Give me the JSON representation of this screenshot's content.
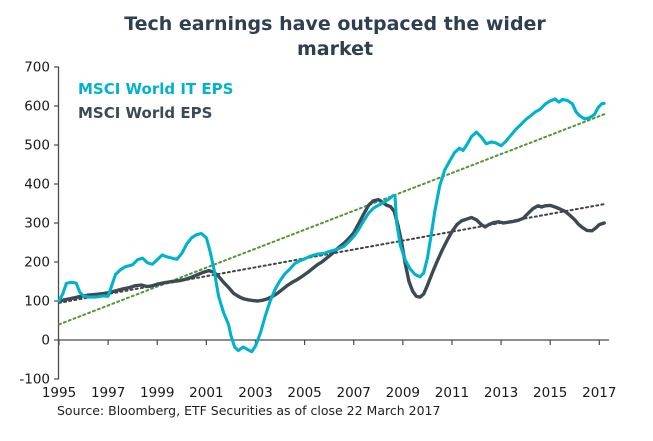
{
  "title": "Tech earnings have outpaced the wider market",
  "source": "Source: Bloomberg, ETF Securities as of close 22 March 2017",
  "colors": {
    "it_line": "#00b3cc",
    "world_line": "#3c4a55",
    "it_trend": "#4e9a2e",
    "world_trend": "#444444",
    "axis": "#4a4a4a",
    "tick_label": "#1a1a1a",
    "title_text": "#2e3f50"
  },
  "legend": [
    {
      "label": "MSCI World IT EPS",
      "color_key": "it_line"
    },
    {
      "label": "MSCI World EPS",
      "color_key": "world_line"
    }
  ],
  "chart_data": {
    "type": "line",
    "title": "Tech earnings have outpaced the wider market",
    "xlabel": "",
    "ylabel": "",
    "grid": false,
    "legend_position": "top-left-inside",
    "x_axis": {
      "range": [
        1995,
        2017.3
      ],
      "tick_years": [
        1995,
        1997,
        1999,
        2001,
        2003,
        2005,
        2007,
        2009,
        2011,
        2013,
        2015,
        2017
      ]
    },
    "y_axis": {
      "range": [
        -100,
        700
      ],
      "ticks": [
        700,
        600,
        500,
        400,
        300,
        200,
        100,
        0,
        -100
      ]
    },
    "series": [
      {
        "name": "MSCI World IT EPS trendline",
        "color_key": "it_trend",
        "style": "dotted",
        "points": [
          [
            1995.0,
            40
          ],
          [
            2017.25,
            580
          ]
        ]
      },
      {
        "name": "MSCI World EPS trendline",
        "color_key": "world_trend",
        "style": "dotted",
        "points": [
          [
            1995.0,
            95
          ],
          [
            2017.25,
            349
          ]
        ]
      },
      {
        "name": "MSCI World EPS",
        "color_key": "world_line",
        "style": "solid",
        "width": 3.4,
        "points": [
          [
            1995.0,
            100
          ],
          [
            1995.3,
            104
          ],
          [
            1995.6,
            108
          ],
          [
            1995.9,
            112
          ],
          [
            1996.2,
            115
          ],
          [
            1996.5,
            117
          ],
          [
            1996.8,
            119
          ],
          [
            1997.0,
            121
          ],
          [
            1997.3,
            126
          ],
          [
            1997.6,
            131
          ],
          [
            1997.9,
            135
          ],
          [
            1998.1,
            139
          ],
          [
            1998.35,
            141
          ],
          [
            1998.6,
            137
          ],
          [
            1998.8,
            139
          ],
          [
            1999.0,
            143
          ],
          [
            1999.3,
            147
          ],
          [
            1999.6,
            150
          ],
          [
            1999.9,
            152
          ],
          [
            2000.1,
            155
          ],
          [
            2000.4,
            161
          ],
          [
            2000.7,
            169
          ],
          [
            2000.9,
            174
          ],
          [
            2001.1,
            178
          ],
          [
            2001.3,
            174
          ],
          [
            2001.5,
            163
          ],
          [
            2001.7,
            148
          ],
          [
            2001.9,
            135
          ],
          [
            2002.1,
            120
          ],
          [
            2002.3,
            112
          ],
          [
            2002.5,
            106
          ],
          [
            2002.7,
            103
          ],
          [
            2002.9,
            101
          ],
          [
            2003.1,
            100
          ],
          [
            2003.3,
            102
          ],
          [
            2003.5,
            106
          ],
          [
            2003.7,
            112
          ],
          [
            2003.9,
            120
          ],
          [
            2004.1,
            130
          ],
          [
            2004.3,
            140
          ],
          [
            2004.5,
            148
          ],
          [
            2004.7,
            155
          ],
          [
            2004.9,
            163
          ],
          [
            2005.1,
            172
          ],
          [
            2005.3,
            182
          ],
          [
            2005.5,
            192
          ],
          [
            2005.7,
            200
          ],
          [
            2005.9,
            210
          ],
          [
            2006.1,
            220
          ],
          [
            2006.35,
            235
          ],
          [
            2006.6,
            248
          ],
          [
            2006.8,
            260
          ],
          [
            2007.0,
            275
          ],
          [
            2007.2,
            298
          ],
          [
            2007.4,
            322
          ],
          [
            2007.6,
            345
          ],
          [
            2007.8,
            357
          ],
          [
            2008.0,
            360
          ],
          [
            2008.2,
            352
          ],
          [
            2008.35,
            345
          ],
          [
            2008.5,
            342
          ],
          [
            2008.65,
            330
          ],
          [
            2008.8,
            295
          ],
          [
            2008.95,
            250
          ],
          [
            2009.1,
            195
          ],
          [
            2009.25,
            150
          ],
          [
            2009.4,
            125
          ],
          [
            2009.55,
            112
          ],
          [
            2009.7,
            110
          ],
          [
            2009.85,
            118
          ],
          [
            2010.0,
            140
          ],
          [
            2010.2,
            172
          ],
          [
            2010.4,
            202
          ],
          [
            2010.6,
            230
          ],
          [
            2010.8,
            255
          ],
          [
            2011.0,
            278
          ],
          [
            2011.2,
            296
          ],
          [
            2011.4,
            306
          ],
          [
            2011.6,
            310
          ],
          [
            2011.8,
            314
          ],
          [
            2012.0,
            308
          ],
          [
            2012.2,
            296
          ],
          [
            2012.35,
            290
          ],
          [
            2012.5,
            296
          ],
          [
            2012.7,
            301
          ],
          [
            2012.9,
            303
          ],
          [
            2013.1,
            300
          ],
          [
            2013.3,
            302
          ],
          [
            2013.5,
            304
          ],
          [
            2013.7,
            307
          ],
          [
            2013.9,
            312
          ],
          [
            2014.1,
            325
          ],
          [
            2014.3,
            337
          ],
          [
            2014.5,
            344
          ],
          [
            2014.65,
            341
          ],
          [
            2014.8,
            344
          ],
          [
            2015.0,
            345
          ],
          [
            2015.2,
            341
          ],
          [
            2015.4,
            336
          ],
          [
            2015.6,
            330
          ],
          [
            2015.8,
            320
          ],
          [
            2016.0,
            308
          ],
          [
            2016.15,
            297
          ],
          [
            2016.3,
            289
          ],
          [
            2016.5,
            281
          ],
          [
            2016.7,
            280
          ],
          [
            2016.85,
            287
          ],
          [
            2017.0,
            296
          ],
          [
            2017.2,
            300
          ]
        ]
      },
      {
        "name": "MSCI World IT EPS",
        "color_key": "it_line",
        "style": "solid",
        "width": 3.1,
        "points": [
          [
            1995.0,
            100
          ],
          [
            1995.15,
            118
          ],
          [
            1995.3,
            145
          ],
          [
            1995.5,
            148
          ],
          [
            1995.7,
            146
          ],
          [
            1995.85,
            122
          ],
          [
            1996.0,
            113
          ],
          [
            1996.2,
            110
          ],
          [
            1996.5,
            110
          ],
          [
            1996.8,
            113
          ],
          [
            1997.0,
            112
          ],
          [
            1997.15,
            140
          ],
          [
            1997.3,
            168
          ],
          [
            1997.5,
            180
          ],
          [
            1997.7,
            188
          ],
          [
            1998.0,
            193
          ],
          [
            1998.2,
            206
          ],
          [
            1998.4,
            210
          ],
          [
            1998.6,
            198
          ],
          [
            1998.8,
            194
          ],
          [
            1999.0,
            206
          ],
          [
            1999.2,
            218
          ],
          [
            1999.4,
            213
          ],
          [
            1999.6,
            210
          ],
          [
            1999.8,
            207
          ],
          [
            2000.0,
            222
          ],
          [
            2000.2,
            246
          ],
          [
            2000.4,
            262
          ],
          [
            2000.6,
            270
          ],
          [
            2000.8,
            273
          ],
          [
            2001.0,
            262
          ],
          [
            2001.15,
            228
          ],
          [
            2001.3,
            185
          ],
          [
            2001.5,
            112
          ],
          [
            2001.7,
            70
          ],
          [
            2001.9,
            40
          ],
          [
            2002.0,
            12
          ],
          [
            2002.15,
            -18
          ],
          [
            2002.3,
            -27
          ],
          [
            2002.5,
            -18
          ],
          [
            2002.7,
            -25
          ],
          [
            2002.85,
            -30
          ],
          [
            2003.0,
            -15
          ],
          [
            2003.2,
            18
          ],
          [
            2003.4,
            62
          ],
          [
            2003.6,
            100
          ],
          [
            2003.8,
            130
          ],
          [
            2004.0,
            152
          ],
          [
            2004.2,
            170
          ],
          [
            2004.4,
            182
          ],
          [
            2004.6,
            196
          ],
          [
            2004.8,
            203
          ],
          [
            2005.0,
            208
          ],
          [
            2005.2,
            214
          ],
          [
            2005.5,
            220
          ],
          [
            2005.8,
            222
          ],
          [
            2006.0,
            227
          ],
          [
            2006.3,
            232
          ],
          [
            2006.6,
            240
          ],
          [
            2006.8,
            252
          ],
          [
            2007.0,
            265
          ],
          [
            2007.2,
            283
          ],
          [
            2007.4,
            305
          ],
          [
            2007.6,
            325
          ],
          [
            2007.8,
            338
          ],
          [
            2008.0,
            345
          ],
          [
            2008.2,
            352
          ],
          [
            2008.4,
            360
          ],
          [
            2008.6,
            370
          ],
          [
            2008.68,
            368
          ],
          [
            2008.75,
            300
          ],
          [
            2008.9,
            242
          ],
          [
            2009.1,
            205
          ],
          [
            2009.3,
            182
          ],
          [
            2009.5,
            168
          ],
          [
            2009.7,
            162
          ],
          [
            2009.85,
            172
          ],
          [
            2010.0,
            210
          ],
          [
            2010.15,
            268
          ],
          [
            2010.3,
            330
          ],
          [
            2010.5,
            395
          ],
          [
            2010.7,
            435
          ],
          [
            2010.9,
            458
          ],
          [
            2011.1,
            480
          ],
          [
            2011.3,
            492
          ],
          [
            2011.45,
            486
          ],
          [
            2011.6,
            500
          ],
          [
            2011.8,
            522
          ],
          [
            2012.0,
            533
          ],
          [
            2012.2,
            520
          ],
          [
            2012.4,
            503
          ],
          [
            2012.6,
            508
          ],
          [
            2012.8,
            505
          ],
          [
            2013.0,
            498
          ],
          [
            2013.2,
            510
          ],
          [
            2013.4,
            525
          ],
          [
            2013.6,
            540
          ],
          [
            2013.8,
            552
          ],
          [
            2014.0,
            565
          ],
          [
            2014.2,
            575
          ],
          [
            2014.4,
            585
          ],
          [
            2014.6,
            592
          ],
          [
            2014.8,
            605
          ],
          [
            2015.0,
            613
          ],
          [
            2015.2,
            618
          ],
          [
            2015.35,
            610
          ],
          [
            2015.5,
            617
          ],
          [
            2015.7,
            614
          ],
          [
            2015.9,
            606
          ],
          [
            2016.05,
            585
          ],
          [
            2016.2,
            575
          ],
          [
            2016.4,
            567
          ],
          [
            2016.6,
            570
          ],
          [
            2016.8,
            578
          ],
          [
            2016.95,
            596
          ],
          [
            2017.1,
            606
          ],
          [
            2017.2,
            607
          ]
        ]
      }
    ]
  }
}
